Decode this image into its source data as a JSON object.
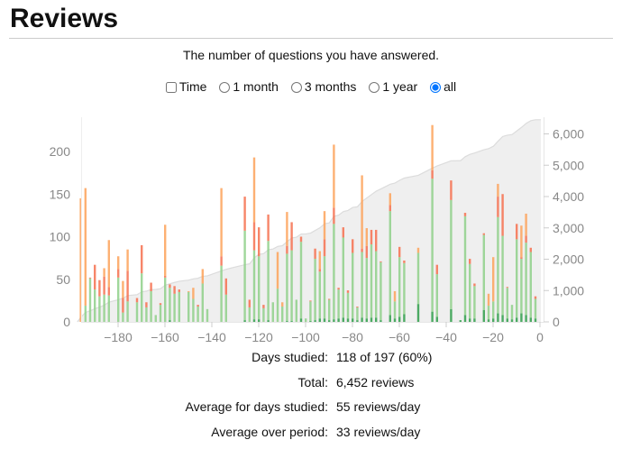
{
  "title": "Reviews",
  "subtitle": "The number of questions you have answered.",
  "controls": {
    "time_label": "Time",
    "time_checked": false,
    "options": [
      {
        "label": "1 month",
        "checked": false
      },
      {
        "label": "3 months",
        "checked": false
      },
      {
        "label": "1 year",
        "checked": false
      },
      {
        "label": "all",
        "checked": true
      }
    ]
  },
  "colors": {
    "learn": "#fda25a",
    "relearn": "#f6704f",
    "young": "#8fd08a",
    "mature": "#2f9e4a",
    "cumulative_fill": "#efefef",
    "cumulative_line": "#dcdcdc"
  },
  "chart_data": {
    "type": "bar",
    "stacked": true,
    "series_names": [
      "learn",
      "relearn",
      "young",
      "mature"
    ],
    "xlim": [
      -197,
      0
    ],
    "ylim_left": [
      0,
      240
    ],
    "ylim_right": [
      0,
      6500
    ],
    "x_ticks": [
      "−180",
      "−160",
      "−140",
      "−120",
      "−100",
      "−80",
      "−60",
      "−40",
      "−20",
      "0"
    ],
    "x_tick_values": [
      -180,
      -160,
      -140,
      -120,
      -100,
      -80,
      -60,
      -40,
      -20,
      0
    ],
    "y_ticks_left": [
      "0",
      "50",
      "100",
      "150",
      "200"
    ],
    "y_tick_values_left": [
      0,
      50,
      100,
      150,
      200
    ],
    "y_ticks_right": [
      "0",
      "1,000",
      "2,000",
      "3,000",
      "4,000",
      "5,000",
      "6,000"
    ],
    "y_tick_values_right": [
      0,
      1000,
      2000,
      3000,
      4000,
      5000,
      6000
    ],
    "cumulative_total": 6452,
    "days": [
      [
        -196,
        145,
        0,
        0,
        0
      ],
      [
        -194,
        138,
        0,
        19,
        0
      ],
      [
        -192,
        0,
        1,
        51,
        0
      ],
      [
        -190,
        0,
        29,
        38,
        0
      ],
      [
        -188,
        0,
        19,
        30,
        0
      ],
      [
        -186,
        10,
        21,
        32,
        0
      ],
      [
        -184,
        55,
        10,
        31,
        0
      ],
      [
        -180,
        15,
        10,
        52,
        0
      ],
      [
        -178,
        20,
        17,
        11,
        0
      ],
      [
        -176,
        25,
        36,
        24,
        0
      ],
      [
        -172,
        0,
        5,
        23,
        0
      ],
      [
        -170,
        0,
        33,
        57,
        0
      ],
      [
        -168,
        0,
        6,
        17,
        0
      ],
      [
        -166,
        0,
        10,
        36,
        0
      ],
      [
        -164,
        0,
        0,
        8,
        0
      ],
      [
        -162,
        0,
        2,
        20,
        0
      ],
      [
        -160,
        60,
        2,
        52,
        0
      ],
      [
        -158,
        0,
        4,
        38,
        2
      ],
      [
        -156,
        0,
        9,
        33,
        0
      ],
      [
        -154,
        0,
        3,
        35,
        0
      ],
      [
        -150,
        1,
        0,
        35,
        0
      ],
      [
        -148,
        13,
        0,
        27,
        0
      ],
      [
        -146,
        0,
        2,
        18,
        0
      ],
      [
        -144,
        17,
        0,
        45,
        0
      ],
      [
        -142,
        0,
        0,
        15,
        0
      ],
      [
        -136,
        80,
        11,
        66,
        0
      ],
      [
        -134,
        0,
        19,
        32,
        0
      ],
      [
        -126,
        0,
        40,
        105,
        2
      ],
      [
        -124,
        0,
        9,
        17,
        0
      ],
      [
        -122,
        76,
        33,
        81,
        3
      ],
      [
        -120,
        0,
        34,
        74,
        3
      ],
      [
        -118,
        0,
        4,
        16,
        0
      ],
      [
        -116,
        0,
        31,
        93,
        2
      ],
      [
        -114,
        0,
        0,
        23,
        0
      ],
      [
        -112,
        43,
        0,
        39,
        0
      ],
      [
        -110,
        5,
        0,
        18,
        0
      ],
      [
        -108,
        40,
        9,
        79,
        1
      ],
      [
        -106,
        0,
        33,
        83,
        1
      ],
      [
        -104,
        0,
        0,
        26,
        0
      ],
      [
        -102,
        0,
        6,
        90,
        4
      ],
      [
        -100,
        0,
        0,
        4,
        0
      ],
      [
        -98,
        0,
        1,
        23,
        1
      ],
      [
        -96,
        0,
        12,
        72,
        2
      ],
      [
        -94,
        21,
        3,
        55,
        4
      ],
      [
        -92,
        33,
        20,
        73,
        4
      ],
      [
        -90,
        0,
        1,
        24,
        2
      ],
      [
        -88,
        74,
        19,
        112,
        3
      ],
      [
        -86,
        0,
        2,
        34,
        4
      ],
      [
        -84,
        0,
        12,
        94,
        5
      ],
      [
        -82,
        0,
        3,
        30,
        4
      ],
      [
        -80,
        0,
        16,
        77,
        4
      ],
      [
        -78,
        0,
        1,
        15,
        2
      ],
      [
        -76,
        86,
        4,
        77,
        5
      ],
      [
        -74,
        21,
        14,
        71,
        4
      ],
      [
        -72,
        0,
        17,
        86,
        5
      ],
      [
        -70,
        0,
        25,
        78,
        5
      ],
      [
        -68,
        0,
        1,
        68,
        2
      ],
      [
        -64,
        14,
        7,
        122,
        8
      ],
      [
        -62,
        12,
        0,
        20,
        4
      ],
      [
        -60,
        0,
        12,
        70,
        6
      ],
      [
        -58,
        0,
        3,
        60,
        9
      ],
      [
        -52,
        6,
        0,
        60,
        21
      ],
      [
        -46,
        53,
        10,
        156,
        12
      ],
      [
        -44,
        0,
        11,
        50,
        6
      ],
      [
        -38,
        0,
        23,
        128,
        15
      ],
      [
        -34,
        0,
        0,
        0,
        2
      ],
      [
        -32,
        0,
        4,
        116,
        8
      ],
      [
        -30,
        0,
        6,
        64,
        4
      ],
      [
        -28,
        0,
        3,
        38,
        4
      ],
      [
        -24,
        0,
        2,
        88,
        14
      ],
      [
        -22,
        14,
        0,
        16,
        3
      ],
      [
        -20,
        52,
        0,
        20,
        4
      ],
      [
        -18,
        15,
        24,
        113,
        10
      ],
      [
        -16,
        0,
        49,
        93,
        8
      ],
      [
        -14,
        0,
        1,
        36,
        4
      ],
      [
        -12,
        0,
        0,
        17,
        3
      ],
      [
        -10,
        0,
        18,
        92,
        5
      ],
      [
        -8,
        37,
        2,
        64,
        10
      ],
      [
        -6,
        26,
        8,
        85,
        8
      ],
      [
        -4,
        0,
        5,
        77,
        5
      ],
      [
        -2,
        0,
        3,
        23,
        4
      ]
    ]
  },
  "stats": [
    {
      "label": "Days studied:",
      "value": "118 of 197 (60%)"
    },
    {
      "label": "Total:",
      "value": "6,452 reviews"
    },
    {
      "label": "Average for days studied:",
      "value": "55 reviews/day"
    },
    {
      "label": "Average over period:",
      "value": "33 reviews/day"
    }
  ]
}
